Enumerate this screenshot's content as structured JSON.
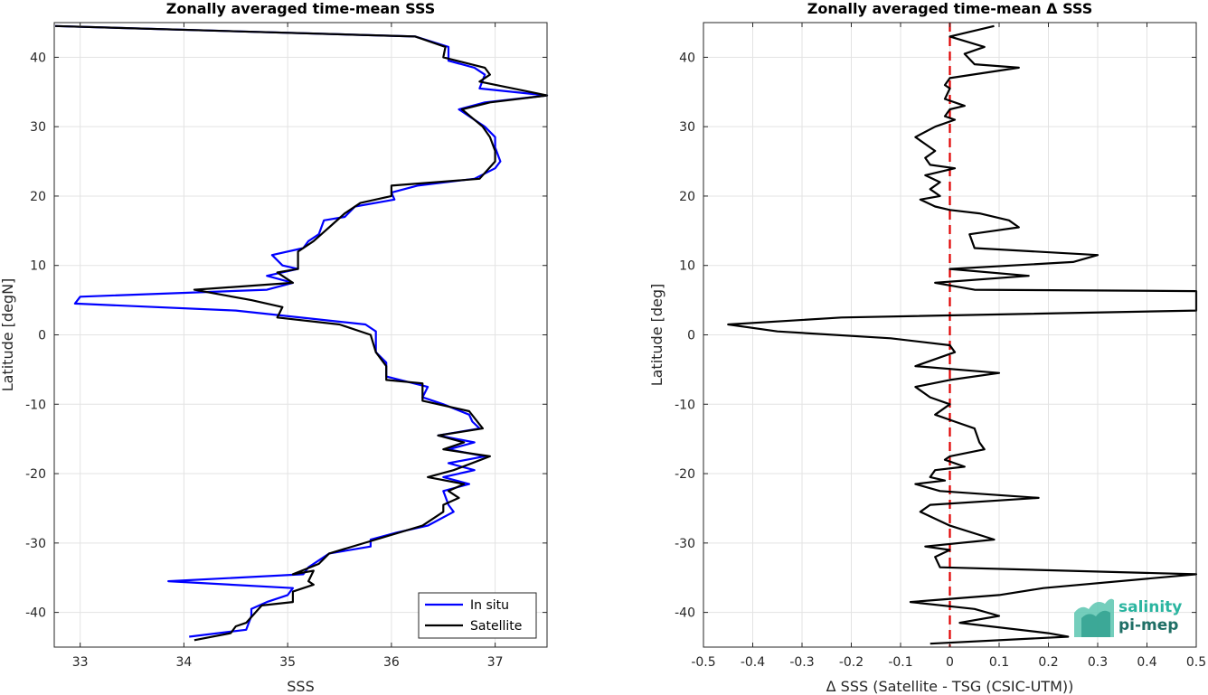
{
  "chart_data": [
    {
      "type": "line",
      "title": "Zonally averaged time-mean SSS",
      "xlabel": "SSS",
      "ylabel": "Latitude [degN]",
      "xlim": [
        32.75,
        37.5
      ],
      "ylim": [
        -45,
        45
      ],
      "xticks": [
        "33",
        "34",
        "35",
        "36",
        "37"
      ],
      "yticks": [
        "-40",
        "-30",
        "-20",
        "-10",
        "0",
        "10",
        "20",
        "30",
        "40"
      ],
      "grid": true,
      "legend_position": "bottom-right",
      "series": [
        {
          "name": "In situ",
          "color": "#0000ff",
          "points": [
            [
              32.76,
              44.5
            ],
            [
              36.23,
              43.0
            ],
            [
              36.55,
              41.5
            ],
            [
              36.55,
              39.5
            ],
            [
              36.8,
              38.5
            ],
            [
              36.9,
              37.5
            ],
            [
              36.85,
              35.5
            ],
            [
              37.5,
              34.5
            ],
            [
              36.9,
              33.5
            ],
            [
              36.65,
              32.5
            ],
            [
              36.9,
              30.0
            ],
            [
              37.0,
              28.5
            ],
            [
              37.0,
              27.0
            ],
            [
              37.05,
              25.0
            ],
            [
              37.0,
              24.0
            ],
            [
              36.8,
              22.5
            ],
            [
              36.25,
              21.5
            ],
            [
              36.0,
              20.5
            ],
            [
              36.03,
              19.5
            ],
            [
              35.65,
              18.5
            ],
            [
              35.55,
              17.0
            ],
            [
              35.35,
              16.5
            ],
            [
              35.3,
              14.5
            ],
            [
              35.2,
              13.5
            ],
            [
              35.15,
              12.5
            ],
            [
              34.85,
              11.5
            ],
            [
              34.95,
              10.0
            ],
            [
              35.1,
              9.5
            ],
            [
              34.8,
              8.5
            ],
            [
              35.05,
              7.5
            ],
            [
              34.8,
              6.5
            ],
            [
              33.0,
              5.5
            ],
            [
              32.95,
              4.5
            ],
            [
              34.5,
              3.5
            ],
            [
              35.75,
              1.5
            ],
            [
              35.85,
              0.5
            ],
            [
              35.85,
              -2.5
            ],
            [
              35.95,
              -4.0
            ],
            [
              35.95,
              -5.0
            ],
            [
              35.95,
              -6.0
            ],
            [
              36.35,
              -7.5
            ],
            [
              36.3,
              -9.0
            ],
            [
              36.5,
              -10.0
            ],
            [
              36.75,
              -11.5
            ],
            [
              36.78,
              -12.5
            ],
            [
              36.85,
              -13.5
            ],
            [
              36.45,
              -14.5
            ],
            [
              36.8,
              -15.5
            ],
            [
              36.55,
              -16.5
            ],
            [
              36.9,
              -17.5
            ],
            [
              36.55,
              -18.5
            ],
            [
              36.8,
              -19.5
            ],
            [
              36.5,
              -20.5
            ],
            [
              36.75,
              -21.5
            ],
            [
              36.5,
              -22.5
            ],
            [
              36.55,
              -24.5
            ],
            [
              36.6,
              -25.5
            ],
            [
              36.35,
              -27.5
            ],
            [
              36.05,
              -28.5
            ],
            [
              35.8,
              -29.5
            ],
            [
              35.8,
              -30.5
            ],
            [
              35.4,
              -31.5
            ],
            [
              35.2,
              -33.5
            ],
            [
              35.15,
              -34.5
            ],
            [
              33.85,
              -35.5
            ],
            [
              35.05,
              -36.5
            ],
            [
              35.0,
              -37.5
            ],
            [
              34.8,
              -38.5
            ],
            [
              34.65,
              -39.5
            ],
            [
              34.65,
              -40.5
            ],
            [
              34.6,
              -42.5
            ],
            [
              34.05,
              -43.5
            ]
          ]
        },
        {
          "name": "Satellite",
          "color": "#000000",
          "points": [
            [
              32.76,
              44.5
            ],
            [
              36.23,
              43.0
            ],
            [
              36.52,
              41.5
            ],
            [
              36.5,
              40.0
            ],
            [
              36.9,
              38.5
            ],
            [
              36.95,
              37.5
            ],
            [
              36.85,
              36.5
            ],
            [
              37.55,
              34.5
            ],
            [
              36.95,
              33.5
            ],
            [
              36.68,
              32.5
            ],
            [
              36.88,
              30.0
            ],
            [
              36.95,
              28.5
            ],
            [
              37.0,
              26.5
            ],
            [
              37.0,
              25.0
            ],
            [
              36.85,
              22.5
            ],
            [
              36.0,
              21.5
            ],
            [
              36.0,
              20.0
            ],
            [
              35.7,
              19.0
            ],
            [
              35.55,
              17.5
            ],
            [
              35.4,
              15.5
            ],
            [
              35.25,
              13.5
            ],
            [
              35.1,
              12.0
            ],
            [
              35.1,
              11.0
            ],
            [
              35.1,
              9.5
            ],
            [
              34.9,
              9.0
            ],
            [
              35.05,
              7.5
            ],
            [
              34.1,
              6.5
            ],
            [
              34.65,
              5.0
            ],
            [
              34.95,
              4.0
            ],
            [
              34.9,
              2.5
            ],
            [
              35.5,
              1.5
            ],
            [
              35.8,
              0.0
            ],
            [
              35.85,
              -2.5
            ],
            [
              35.95,
              -4.5
            ],
            [
              35.95,
              -6.5
            ],
            [
              36.3,
              -7.0
            ],
            [
              36.3,
              -9.5
            ],
            [
              36.75,
              -11.0
            ],
            [
              36.88,
              -13.5
            ],
            [
              36.45,
              -14.5
            ],
            [
              36.7,
              -15.5
            ],
            [
              36.5,
              -16.5
            ],
            [
              36.95,
              -17.5
            ],
            [
              36.6,
              -19.5
            ],
            [
              36.35,
              -20.5
            ],
            [
              36.7,
              -21.5
            ],
            [
              36.55,
              -22.5
            ],
            [
              36.65,
              -23.5
            ],
            [
              36.5,
              -24.5
            ],
            [
              36.5,
              -25.5
            ],
            [
              36.3,
              -27.5
            ],
            [
              35.85,
              -29.5
            ],
            [
              35.4,
              -31.5
            ],
            [
              35.3,
              -33.0
            ],
            [
              35.05,
              -34.5
            ],
            [
              35.25,
              -34.0
            ],
            [
              35.2,
              -35.5
            ],
            [
              35.25,
              -36.0
            ],
            [
              35.05,
              -37.0
            ],
            [
              35.05,
              -38.5
            ],
            [
              34.75,
              -39.0
            ],
            [
              34.6,
              -41.5
            ],
            [
              34.5,
              -42.0
            ],
            [
              34.45,
              -43.0
            ],
            [
              34.1,
              -44.0
            ]
          ]
        }
      ]
    },
    {
      "type": "line",
      "title": "Zonally averaged time-mean Δ SSS",
      "xlabel": "Δ SSS (Satellite - TSG (CSIC-UTM))",
      "ylabel": "Latitude [deg]",
      "xlim": [
        -0.5,
        0.5
      ],
      "ylim": [
        -45,
        45
      ],
      "xticks": [
        "-0.5",
        "-0.4",
        "-0.3",
        "-0.2",
        "-0.1",
        "0",
        "0.1",
        "0.2",
        "0.3",
        "0.4",
        "0.5"
      ],
      "yticks": [
        "-40",
        "-30",
        "-20",
        "-10",
        "0",
        "10",
        "20",
        "30",
        "40"
      ],
      "grid": true,
      "reference_line": {
        "x": 0,
        "color": "#e00000",
        "style": "dashed"
      },
      "series": [
        {
          "name": "",
          "color": "#000000",
          "points": [
            [
              0.09,
              44.5
            ],
            [
              0.0,
              43.0
            ],
            [
              0.07,
              41.5
            ],
            [
              0.03,
              40.5
            ],
            [
              0.05,
              39.0
            ],
            [
              0.14,
              38.5
            ],
            [
              0.0,
              37.0
            ],
            [
              -0.01,
              36.0
            ],
            [
              0.0,
              35.5
            ],
            [
              -0.01,
              34.0
            ],
            [
              0.03,
              33.0
            ],
            [
              0.0,
              32.5
            ],
            [
              -0.01,
              31.5
            ],
            [
              0.01,
              31.0
            ],
            [
              -0.03,
              30.0
            ],
            [
              -0.07,
              28.5
            ],
            [
              -0.05,
              27.5
            ],
            [
              -0.03,
              26.5
            ],
            [
              -0.05,
              25.5
            ],
            [
              -0.04,
              24.5
            ],
            [
              0.01,
              24.0
            ],
            [
              -0.05,
              23.0
            ],
            [
              -0.02,
              22.0
            ],
            [
              -0.04,
              21.0
            ],
            [
              -0.02,
              20.0
            ],
            [
              -0.06,
              19.5
            ],
            [
              -0.03,
              18.5
            ],
            [
              0.0,
              18.0
            ],
            [
              0.06,
              17.5
            ],
            [
              0.12,
              16.5
            ],
            [
              0.14,
              15.5
            ],
            [
              0.04,
              14.5
            ],
            [
              0.05,
              12.5
            ],
            [
              0.3,
              11.5
            ],
            [
              0.25,
              10.5
            ],
            [
              0.0,
              9.5
            ],
            [
              0.16,
              8.5
            ],
            [
              -0.03,
              7.5
            ],
            [
              0.05,
              6.5
            ],
            [
              0.5,
              6.3
            ],
            [
              0.5,
              3.5
            ],
            [
              -0.22,
              2.5
            ],
            [
              -0.45,
              1.5
            ],
            [
              -0.35,
              0.5
            ],
            [
              -0.12,
              -0.5
            ],
            [
              0.0,
              -1.5
            ],
            [
              0.01,
              -2.5
            ],
            [
              -0.07,
              -4.5
            ],
            [
              0.1,
              -5.5
            ],
            [
              0.0,
              -6.5
            ],
            [
              -0.07,
              -7.5
            ],
            [
              -0.04,
              -9.0
            ],
            [
              0.0,
              -10.0
            ],
            [
              -0.03,
              -11.5
            ],
            [
              0.01,
              -12.5
            ],
            [
              0.05,
              -13.5
            ],
            [
              0.06,
              -15.5
            ],
            [
              0.07,
              -16.5
            ],
            [
              0.0,
              -17.5
            ],
            [
              -0.01,
              -18.0
            ],
            [
              0.03,
              -19.0
            ],
            [
              -0.03,
              -19.5
            ],
            [
              -0.04,
              -20.5
            ],
            [
              -0.01,
              -21.0
            ],
            [
              -0.07,
              -21.5
            ],
            [
              -0.02,
              -22.5
            ],
            [
              0.18,
              -23.5
            ],
            [
              -0.04,
              -24.5
            ],
            [
              -0.06,
              -25.5
            ],
            [
              0.0,
              -27.5
            ],
            [
              0.09,
              -29.5
            ],
            [
              -0.05,
              -30.5
            ],
            [
              0.0,
              -31.0
            ],
            [
              -0.03,
              -32.0
            ],
            [
              -0.02,
              -33.5
            ],
            [
              0.5,
              -34.5
            ],
            [
              0.19,
              -36.5
            ],
            [
              0.1,
              -37.5
            ],
            [
              -0.08,
              -38.5
            ],
            [
              0.05,
              -39.5
            ],
            [
              0.1,
              -40.5
            ],
            [
              0.02,
              -41.5
            ],
            [
              0.2,
              -43.0
            ],
            [
              0.24,
              -43.5
            ],
            [
              -0.04,
              -44.5
            ]
          ]
        }
      ]
    }
  ],
  "logo": {
    "line1": "salinity",
    "line2": "pi-mep"
  }
}
